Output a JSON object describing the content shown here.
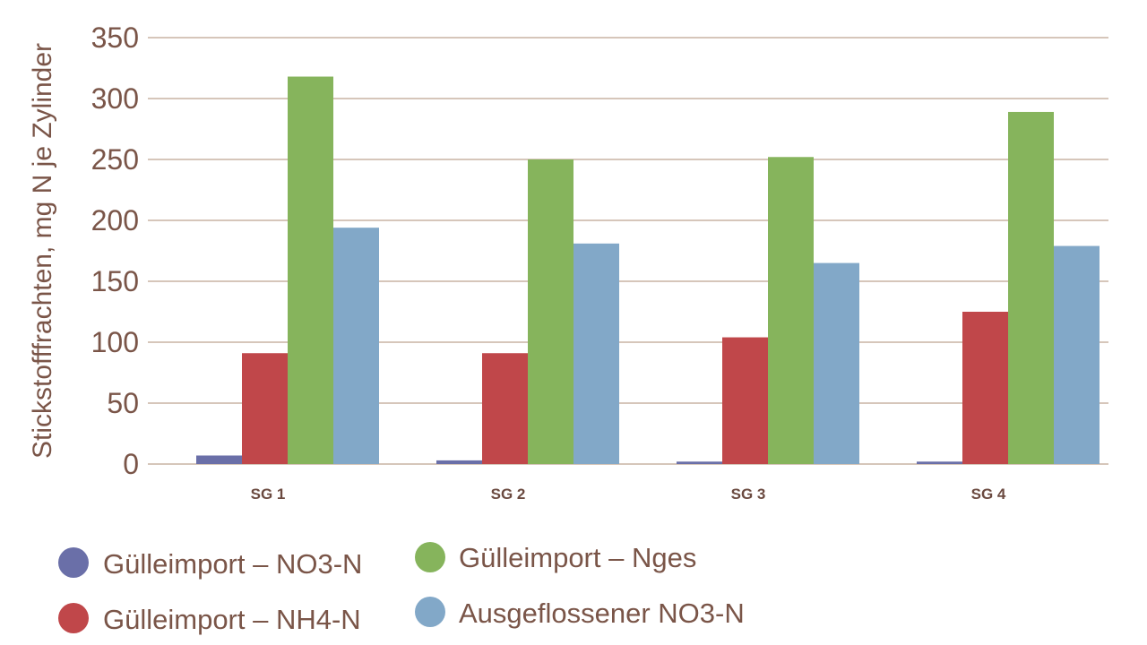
{
  "chart_data": {
    "type": "bar",
    "ylabel": "Stickstofffrachten, mg N je Zylinder",
    "xlabel": "",
    "ylim": [
      0,
      350
    ],
    "yticks": [
      0,
      50,
      100,
      150,
      200,
      250,
      300,
      350
    ],
    "grid": true,
    "legend_position": "bottom",
    "categories": [
      "SG 1",
      "SG 2",
      "SG 3",
      "SG 4"
    ],
    "series": [
      {
        "name": "Gülleimport – NO3-N",
        "color": "#6a6fa8",
        "values": [
          7,
          3,
          2,
          2
        ]
      },
      {
        "name": "Gülleimport – NH4-N",
        "color": "#c0474a",
        "values": [
          91,
          91,
          104,
          125
        ]
      },
      {
        "name": "Gülleimport – Nges",
        "color": "#86b45c",
        "values": [
          318,
          250,
          252,
          289
        ]
      },
      {
        "name": "Ausgeflossener NO3-N",
        "color": "#82a8c8",
        "values": [
          194,
          181,
          165,
          179
        ]
      }
    ],
    "gridline_color": "#c9b3a4",
    "text_color": "#7a5548"
  }
}
